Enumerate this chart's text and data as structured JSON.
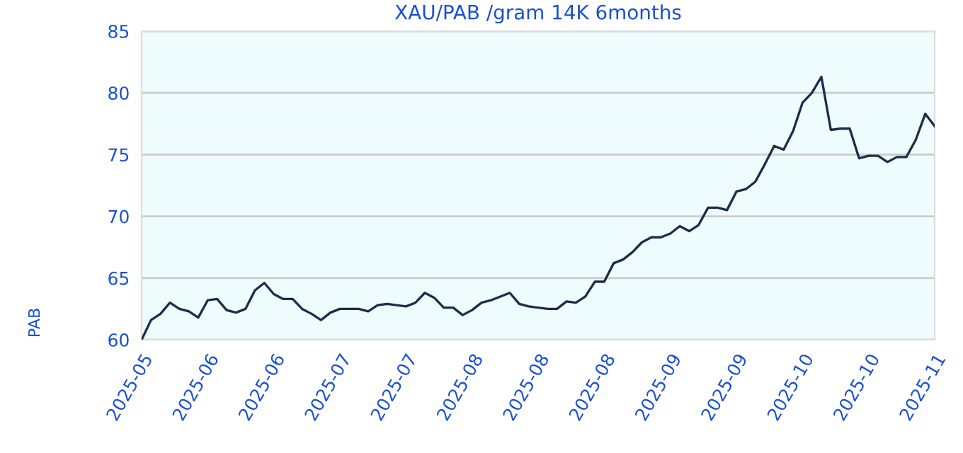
{
  "chart_data": {
    "type": "line",
    "title": "XAU/PAB /gram 14K 6months",
    "ylabel": "PAB",
    "categories": [
      "2025-05",
      null,
      null,
      null,
      null,
      null,
      null,
      "2025-06",
      null,
      null,
      null,
      null,
      null,
      null,
      "2025-06",
      null,
      null,
      null,
      null,
      null,
      null,
      "2025-07",
      null,
      null,
      null,
      null,
      null,
      null,
      "2025-07",
      null,
      null,
      null,
      null,
      null,
      null,
      "2025-08",
      null,
      null,
      null,
      null,
      null,
      null,
      "2025-08",
      null,
      null,
      null,
      null,
      null,
      null,
      "2025-08",
      null,
      null,
      null,
      null,
      null,
      null,
      "2025-09",
      null,
      null,
      null,
      null,
      null,
      null,
      "2025-09",
      null,
      null,
      null,
      null,
      null,
      null,
      "2025-10",
      null,
      null,
      null,
      null,
      null,
      null,
      "2025-10",
      null,
      null,
      null,
      null,
      null,
      null,
      "2025-11"
    ],
    "series": [
      {
        "color": "#1a2e4a",
        "values": [
          60.0,
          61.6,
          62.1,
          63.0,
          62.5,
          62.3,
          61.8,
          63.2,
          63.3,
          62.4,
          62.2,
          62.5,
          64.0,
          64.6,
          63.7,
          63.3,
          63.3,
          62.5,
          62.1,
          61.6,
          62.2,
          62.5,
          62.5,
          62.5,
          62.3,
          62.8,
          62.9,
          62.8,
          62.7,
          63.0,
          63.8,
          63.4,
          62.6,
          62.6,
          62.0,
          62.4,
          63.0,
          63.2,
          63.5,
          63.8,
          62.9,
          62.7,
          62.6,
          62.5,
          62.5,
          63.1,
          63.0,
          63.5,
          64.7,
          64.7,
          66.2,
          66.5,
          67.1,
          67.9,
          68.3,
          68.3,
          68.6,
          69.2,
          68.8,
          69.3,
          70.7,
          70.7,
          70.5,
          72.0,
          72.2,
          72.8,
          74.2,
          75.7,
          75.4,
          76.9,
          79.2,
          80.0,
          81.3,
          77.0,
          77.1,
          77.1,
          74.7,
          74.9,
          74.9,
          74.4,
          74.8,
          74.8,
          76.2,
          78.3,
          77.3
        ]
      }
    ],
    "ylim": [
      60,
      85
    ],
    "yticks": [
      60,
      65,
      70,
      75,
      80,
      85
    ],
    "grid": "y",
    "legend": false,
    "marker": "none",
    "line_style": "solid"
  }
}
